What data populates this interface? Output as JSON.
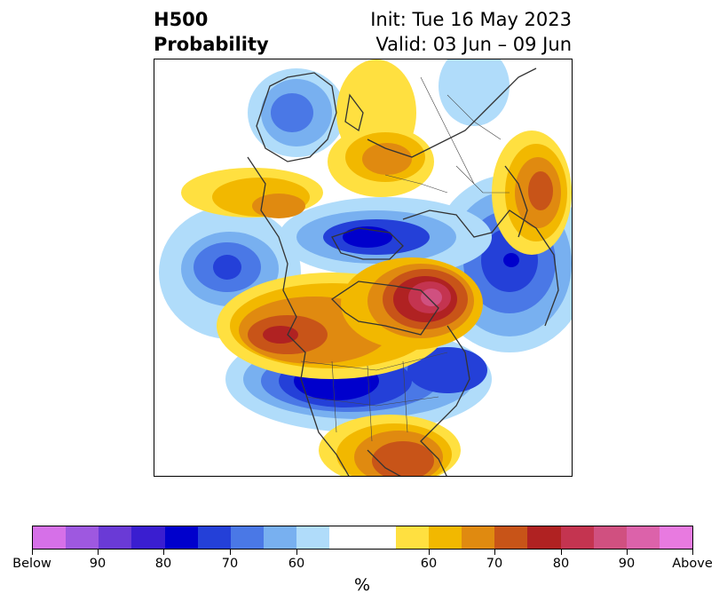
{
  "title": {
    "left_line1": "H500",
    "left_line2": "Probability",
    "right_line1": "Init: Tue 16 May 2023",
    "right_line2": "Valid: 03 Jun – 09 Jun"
  },
  "colorbar": {
    "unit": "%",
    "colors": [
      "#d670e8",
      "#9e58e0",
      "#6a3ad6",
      "#3a1ed0",
      "#0000cc",
      "#2440d8",
      "#4a78e6",
      "#78b0f0",
      "#b0dcfa",
      "#ffffff",
      "#ffffff",
      "#ffe040",
      "#f2b800",
      "#e08a10",
      "#c85418",
      "#b02222",
      "#c43450",
      "#d05080",
      "#dc62aa",
      "#e87ae0"
    ],
    "tick_labels": [
      "Below",
      "90",
      "80",
      "70",
      "60",
      "60",
      "70",
      "80",
      "90",
      "Above"
    ]
  },
  "legend_colors": {
    "below_strong": "#0000cc",
    "below_light": "#b0dcfa",
    "above_light": "#ffe040",
    "above_strong": "#d05080"
  }
}
